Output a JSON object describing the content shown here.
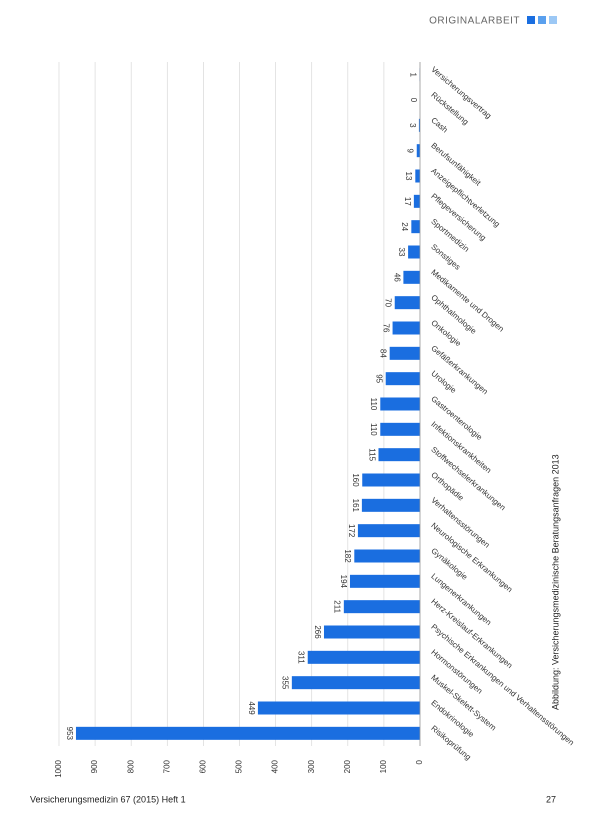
{
  "header": "ORIGINALARBEIT",
  "footer": {
    "journal": "Versicherungsmedizin 67 (2015) Heft 1",
    "page": "27"
  },
  "caption": "Abbildung: Versicherungsmedizinische Beratungsanfragen 2013",
  "chart_data": {
    "type": "bar",
    "orientation": "horizontal",
    "color": "#1a6ee0",
    "grid": true,
    "categories": [
      "Versicherungsvertrag",
      "Rückstellung",
      "Cash",
      "Berufsunfähigkeit",
      "Anzeigepflichtverletzung",
      "Pflegeversicherung",
      "Sportmedizin",
      "Sonstiges",
      "Medikamente und Drogen",
      "Ophthalmologie",
      "Onkologie",
      "Gefäßerkrankungen",
      "Urologie",
      "Gastroenterologie",
      "Infektionskrankheiten",
      "Stoffwechselerkrankungen",
      "Orthopädie",
      "Verhaltensstörungen",
      "Neurologische Erkrankungen",
      "Gynäkologie",
      "Lungenerkrankungen",
      "Herz-Kreislauf-Erkrankungen",
      "Psychische Erkrankungen und Verhaltensstörungen",
      "Hormonstörungen",
      "Muskel-Skelett-System",
      "Endokrinologie",
      "Risikoprüfung"
    ],
    "values": [
      1,
      0,
      3,
      9,
      13,
      17,
      24,
      33,
      46,
      70,
      76,
      84,
      95,
      110,
      110,
      115,
      160,
      161,
      172,
      182,
      194,
      211,
      266,
      311,
      355,
      449,
      953
    ],
    "ylim": [
      0,
      1000
    ],
    "yticks": [
      0,
      100,
      200,
      300,
      400,
      500,
      600,
      700,
      800,
      900,
      1000
    ]
  }
}
